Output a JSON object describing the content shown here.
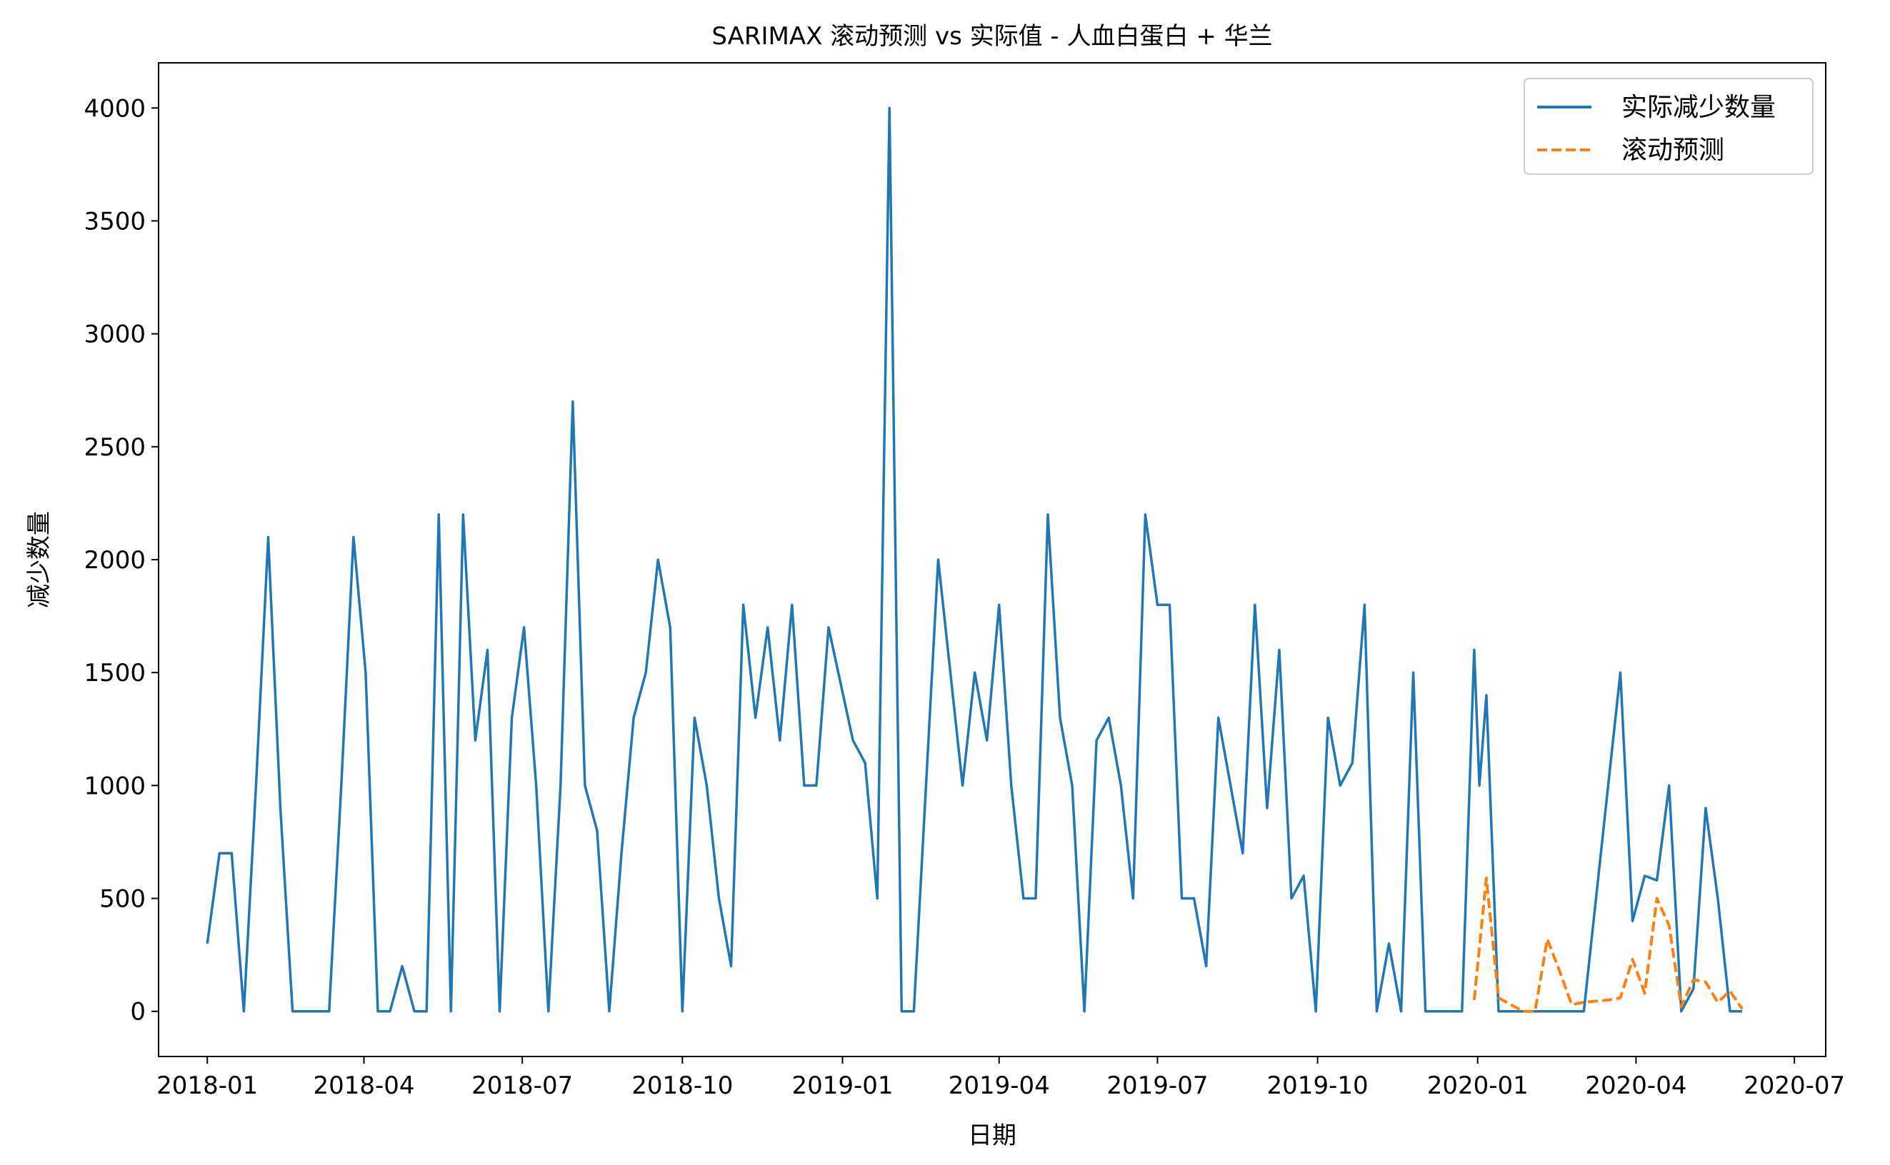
{
  "chart_data": {
    "type": "line",
    "title": "SARIMAX 滚动预测 vs 实际值 - 人血白蛋白 + 华兰",
    "xlabel": "日期",
    "ylabel": "减少数量",
    "ylim": [
      -200,
      4200
    ],
    "xlim": [
      "2017-12-04",
      "2020-07-19"
    ],
    "yticks": [
      0,
      500,
      1000,
      1500,
      2000,
      2500,
      3000,
      3500,
      4000
    ],
    "xticks": [
      "2018-01",
      "2018-04",
      "2018-07",
      "2018-10",
      "2019-01",
      "2019-04",
      "2019-07",
      "2019-10",
      "2020-01",
      "2020-04",
      "2020-07"
    ],
    "grid": false,
    "legend_position": "top-right",
    "series": [
      {
        "name": "实际减少数量",
        "color": "#1f77b4",
        "style": "solid",
        "points": [
          [
            "2018-01-01",
            300
          ],
          [
            "2018-01-08",
            700
          ],
          [
            "2018-01-15",
            700
          ],
          [
            "2018-01-22",
            0
          ],
          [
            "2018-01-29",
            1000
          ],
          [
            "2018-02-05",
            2100
          ],
          [
            "2018-02-12",
            900
          ],
          [
            "2018-02-19",
            0
          ],
          [
            "2018-02-26",
            0
          ],
          [
            "2018-03-05",
            0
          ],
          [
            "2018-03-12",
            0
          ],
          [
            "2018-03-19",
            1000
          ],
          [
            "2018-03-26",
            2100
          ],
          [
            "2018-04-02",
            1500
          ],
          [
            "2018-04-09",
            0
          ],
          [
            "2018-04-16",
            0
          ],
          [
            "2018-04-23",
            200
          ],
          [
            "2018-04-30",
            0
          ],
          [
            "2018-05-07",
            0
          ],
          [
            "2018-05-14",
            2200
          ],
          [
            "2018-05-21",
            0
          ],
          [
            "2018-05-28",
            2200
          ],
          [
            "2018-06-04",
            1200
          ],
          [
            "2018-06-11",
            1600
          ],
          [
            "2018-06-18",
            0
          ],
          [
            "2018-06-25",
            1300
          ],
          [
            "2018-07-02",
            1700
          ],
          [
            "2018-07-09",
            1000
          ],
          [
            "2018-07-16",
            0
          ],
          [
            "2018-07-23",
            1000
          ],
          [
            "2018-07-30",
            2700
          ],
          [
            "2018-08-06",
            1000
          ],
          [
            "2018-08-13",
            800
          ],
          [
            "2018-08-20",
            0
          ],
          [
            "2018-08-27",
            700
          ],
          [
            "2018-09-03",
            1300
          ],
          [
            "2018-09-10",
            1500
          ],
          [
            "2018-09-17",
            2000
          ],
          [
            "2018-09-24",
            1700
          ],
          [
            "2018-10-01",
            0
          ],
          [
            "2018-10-08",
            1300
          ],
          [
            "2018-10-15",
            1000
          ],
          [
            "2018-10-22",
            500
          ],
          [
            "2018-10-29",
            200
          ],
          [
            "2018-11-05",
            1800
          ],
          [
            "2018-11-12",
            1300
          ],
          [
            "2018-11-19",
            1700
          ],
          [
            "2018-11-26",
            1200
          ],
          [
            "2018-12-03",
            1800
          ],
          [
            "2018-12-10",
            1000
          ],
          [
            "2018-12-17",
            1000
          ],
          [
            "2018-12-24",
            1700
          ],
          [
            "2018-12-31",
            1450
          ],
          [
            "2019-01-07",
            1200
          ],
          [
            "2019-01-14",
            1100
          ],
          [
            "2019-01-21",
            500
          ],
          [
            "2019-01-28",
            4000
          ],
          [
            "2019-02-04",
            0
          ],
          [
            "2019-02-11",
            0
          ],
          [
            "2019-02-18",
            1000
          ],
          [
            "2019-02-25",
            2000
          ],
          [
            "2019-03-04",
            1500
          ],
          [
            "2019-03-11",
            1000
          ],
          [
            "2019-03-18",
            1500
          ],
          [
            "2019-03-25",
            1200
          ],
          [
            "2019-04-01",
            1800
          ],
          [
            "2019-04-08",
            1000
          ],
          [
            "2019-04-15",
            500
          ],
          [
            "2019-04-22",
            500
          ],
          [
            "2019-04-29",
            2200
          ],
          [
            "2019-05-06",
            1300
          ],
          [
            "2019-05-13",
            1000
          ],
          [
            "2019-05-20",
            0
          ],
          [
            "2019-05-27",
            1200
          ],
          [
            "2019-06-03",
            1300
          ],
          [
            "2019-06-10",
            1000
          ],
          [
            "2019-06-17",
            500
          ],
          [
            "2019-06-24",
            2200
          ],
          [
            "2019-07-01",
            1800
          ],
          [
            "2019-07-08",
            1800
          ],
          [
            "2019-07-15",
            500
          ],
          [
            "2019-07-22",
            500
          ],
          [
            "2019-07-29",
            200
          ],
          [
            "2019-08-05",
            1300
          ],
          [
            "2019-08-12",
            1000
          ],
          [
            "2019-08-19",
            700
          ],
          [
            "2019-08-26",
            1800
          ],
          [
            "2019-09-02",
            900
          ],
          [
            "2019-09-09",
            1600
          ],
          [
            "2019-09-16",
            500
          ],
          [
            "2019-09-23",
            600
          ],
          [
            "2019-09-30",
            0
          ],
          [
            "2019-10-07",
            1300
          ],
          [
            "2019-10-14",
            1000
          ],
          [
            "2019-10-21",
            1100
          ],
          [
            "2019-10-28",
            1800
          ],
          [
            "2019-11-04",
            0
          ],
          [
            "2019-11-11",
            300
          ],
          [
            "2019-11-18",
            0
          ],
          [
            "2019-11-25",
            1500
          ],
          [
            "2019-12-02",
            0
          ],
          [
            "2019-12-09",
            0
          ],
          [
            "2019-12-16",
            0
          ],
          [
            "2019-12-23",
            0
          ],
          [
            "2019-12-30",
            1600
          ],
          [
            "2020-01-02",
            1000
          ],
          [
            "2020-01-06",
            1400
          ],
          [
            "2020-01-13",
            0
          ],
          [
            "2020-01-20",
            0
          ],
          [
            "2020-01-27",
            0
          ],
          [
            "2020-02-03",
            0
          ],
          [
            "2020-02-10",
            0
          ],
          [
            "2020-02-17",
            0
          ],
          [
            "2020-02-24",
            0
          ],
          [
            "2020-03-02",
            0
          ],
          [
            "2020-03-09",
            500
          ],
          [
            "2020-03-16",
            1000
          ],
          [
            "2020-03-23",
            1500
          ],
          [
            "2020-03-30",
            400
          ],
          [
            "2020-04-06",
            600
          ],
          [
            "2020-04-13",
            580
          ],
          [
            "2020-04-20",
            1000
          ],
          [
            "2020-04-27",
            0
          ],
          [
            "2020-05-04",
            100
          ],
          [
            "2020-05-11",
            900
          ],
          [
            "2020-05-18",
            500
          ],
          [
            "2020-05-25",
            0
          ],
          [
            "2020-06-01",
            0
          ]
        ]
      },
      {
        "name": "滚动预测",
        "color": "#ff7f0e",
        "style": "dashed",
        "points": [
          [
            "2019-12-30",
            50
          ],
          [
            "2020-01-06",
            590
          ],
          [
            "2020-01-13",
            60
          ],
          [
            "2020-01-20",
            30
          ],
          [
            "2020-01-27",
            0
          ],
          [
            "2020-02-03",
            0
          ],
          [
            "2020-02-10",
            320
          ],
          [
            "2020-02-17",
            180
          ],
          [
            "2020-02-24",
            30
          ],
          [
            "2020-03-02",
            40
          ],
          [
            "2020-03-09",
            45
          ],
          [
            "2020-03-16",
            50
          ],
          [
            "2020-03-23",
            60
          ],
          [
            "2020-03-30",
            230
          ],
          [
            "2020-04-06",
            80
          ],
          [
            "2020-04-13",
            500
          ],
          [
            "2020-04-20",
            380
          ],
          [
            "2020-04-27",
            20
          ],
          [
            "2020-05-04",
            140
          ],
          [
            "2020-05-11",
            130
          ],
          [
            "2020-05-18",
            40
          ],
          [
            "2020-05-25",
            90
          ],
          [
            "2020-06-01",
            10
          ]
        ]
      }
    ]
  }
}
